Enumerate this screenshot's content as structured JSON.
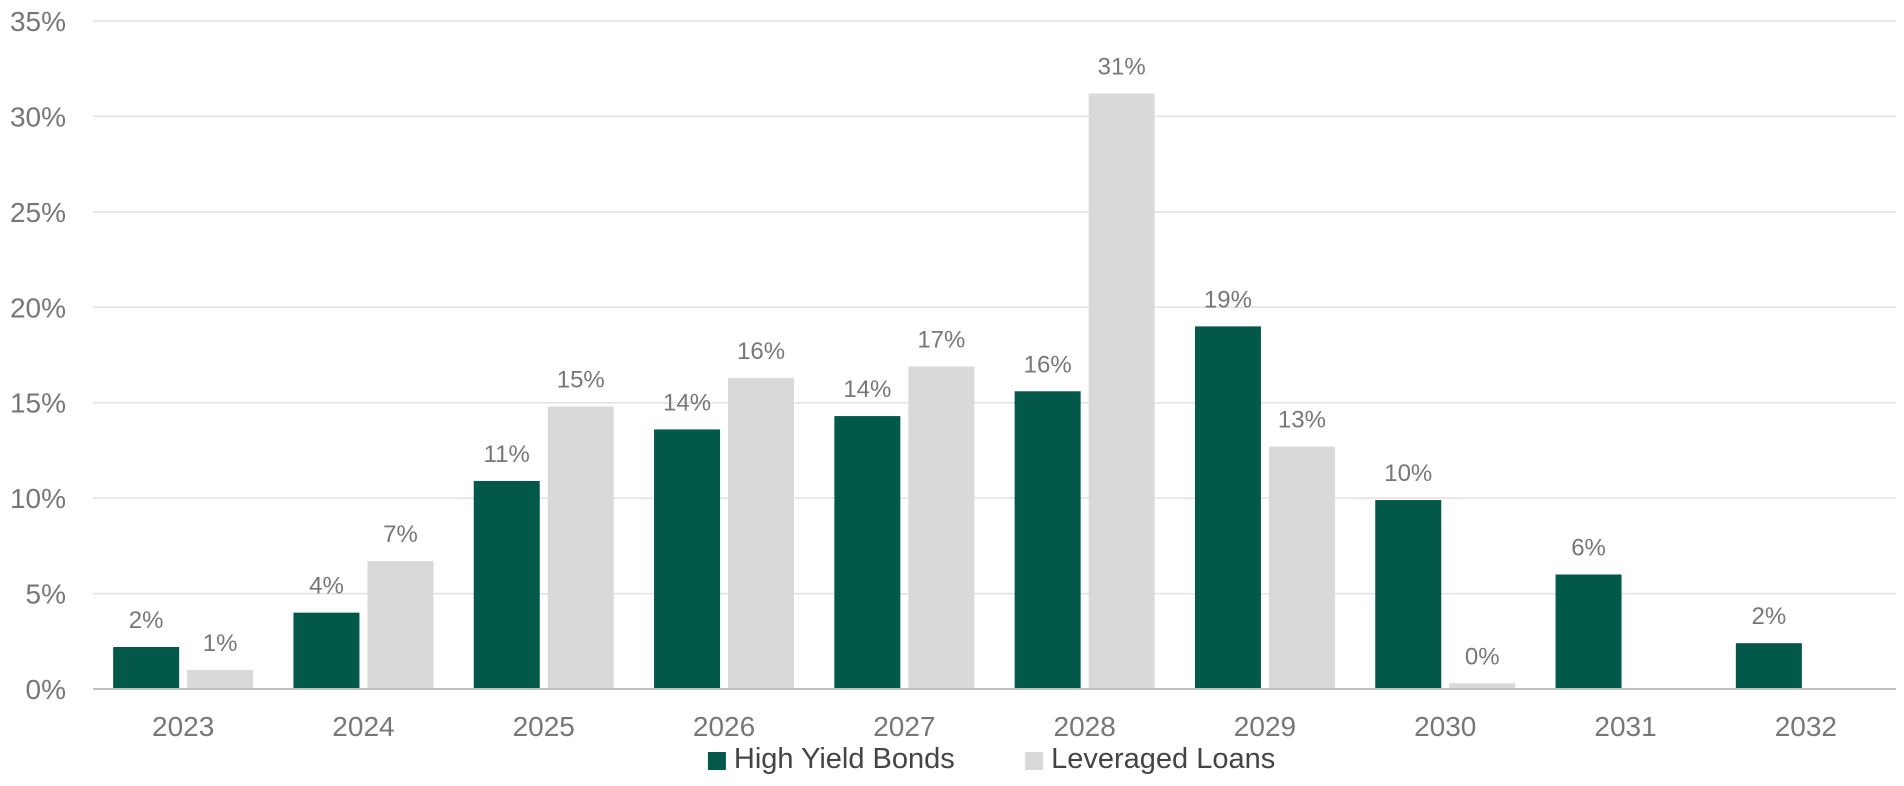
{
  "chart_data": {
    "type": "bar",
    "categories": [
      "2023",
      "2024",
      "2025",
      "2026",
      "2027",
      "2028",
      "2029",
      "2030",
      "2031",
      "2032"
    ],
    "series": [
      {
        "name": "High Yield Bonds",
        "color": "#02594A",
        "values": [
          2.2,
          4.0,
          10.9,
          13.6,
          14.3,
          15.6,
          19.0,
          9.9,
          6.0,
          2.4
        ],
        "labels": [
          "2%",
          "4%",
          "11%",
          "14%",
          "14%",
          "16%",
          "19%",
          "10%",
          "6%",
          "2%"
        ]
      },
      {
        "name": "Leveraged Loans",
        "color": "#D9D9D9",
        "values": [
          1.0,
          6.7,
          14.8,
          16.3,
          16.9,
          31.2,
          12.7,
          0.3,
          0,
          0
        ],
        "labels": [
          "1%",
          "7%",
          "15%",
          "16%",
          "17%",
          "31%",
          "13%",
          "0%",
          "",
          ""
        ]
      }
    ],
    "y_ticks": [
      "0%",
      "5%",
      "10%",
      "15%",
      "20%",
      "25%",
      "30%",
      "35%"
    ],
    "ylim": [
      0,
      35
    ],
    "grid": true,
    "legend_position": "bottom-center",
    "title": "",
    "xlabel": "",
    "ylabel": ""
  }
}
